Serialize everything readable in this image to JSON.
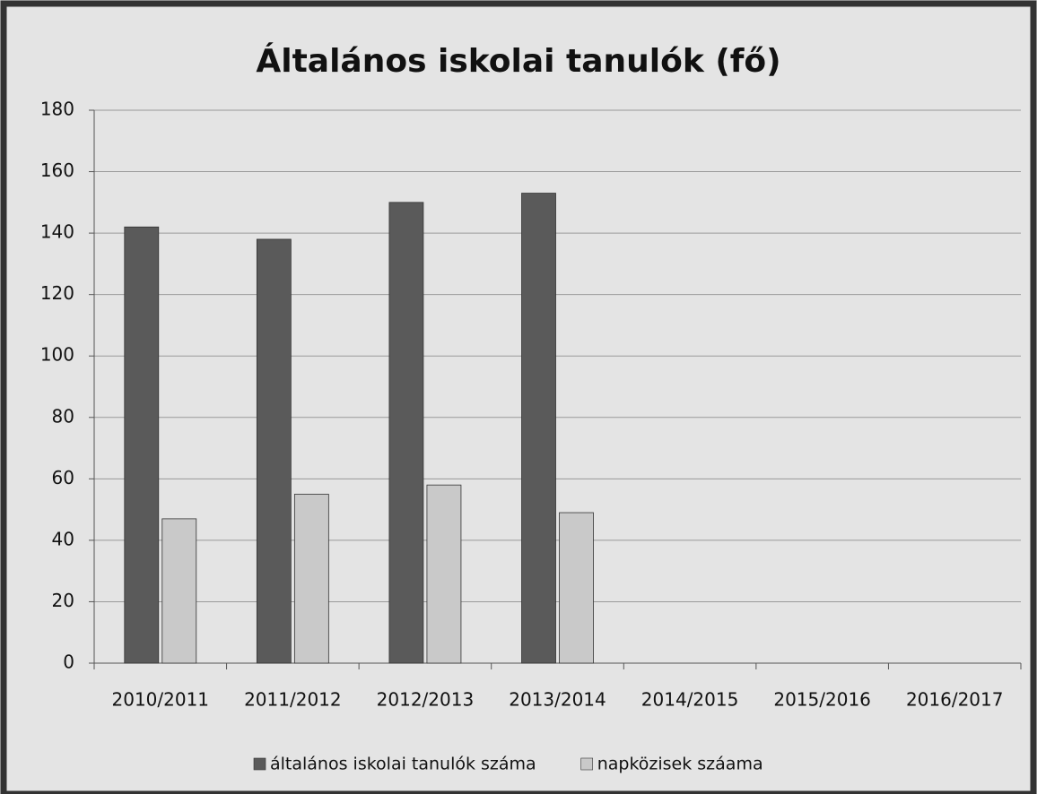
{
  "chart_data": {
    "type": "bar",
    "title": "Általános iskolai tanulók (fő)",
    "categories": [
      "2010/2011",
      "2011/2012",
      "2012/2013",
      "2013/2014",
      "2014/2015",
      "2015/2016",
      "2016/2017"
    ],
    "series": [
      {
        "name": "általános iskolai tanulók száma",
        "color": "#5a5a5a",
        "values": [
          142,
          138,
          150,
          153,
          null,
          null,
          null
        ]
      },
      {
        "name": "napközisek száama",
        "color": "#c9c9c9",
        "values": [
          47,
          55,
          58,
          49,
          null,
          null,
          null
        ]
      }
    ],
    "ylim": [
      0,
      180
    ],
    "yticks": [
      0,
      20,
      40,
      60,
      80,
      100,
      120,
      140,
      160,
      180
    ],
    "grid": true,
    "legend": "bottom"
  }
}
